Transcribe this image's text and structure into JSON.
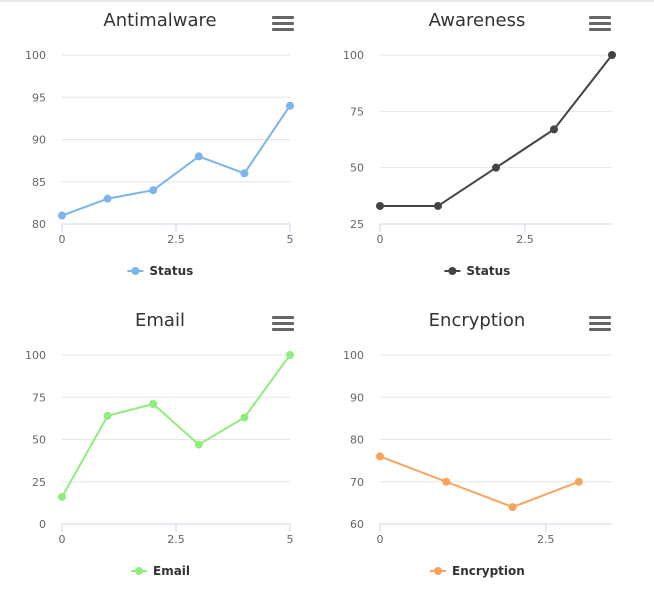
{
  "charts": [
    {
      "type": "line",
      "title": "Antimalware",
      "menu_icon": "hamburger-menu-icon",
      "color": "#7cb5ec",
      "x": [
        0,
        1,
        2,
        3,
        4,
        5
      ],
      "series": [
        {
          "name": "Status",
          "values": [
            81,
            83,
            84,
            88,
            86,
            94
          ]
        }
      ],
      "xlim": [
        0,
        5
      ],
      "xticks": [
        "0",
        "2.5",
        "5"
      ],
      "ylim": [
        80,
        100
      ],
      "yticks": [
        "80",
        "85",
        "90",
        "95",
        "100"
      ],
      "legend": "Status"
    },
    {
      "type": "line",
      "title": "Awareness",
      "menu_icon": "hamburger-menu-icon",
      "color": "#434348",
      "x": [
        0,
        1,
        2,
        3,
        4
      ],
      "series": [
        {
          "name": "Status",
          "values": [
            33,
            33,
            50,
            67,
            100
          ]
        }
      ],
      "xlim": [
        0,
        4
      ],
      "xticks": [
        "0",
        "2.5"
      ],
      "ylim": [
        25,
        100
      ],
      "yticks": [
        "25",
        "50",
        "75",
        "100"
      ],
      "legend": "Status"
    },
    {
      "type": "line",
      "title": "Email",
      "menu_icon": "hamburger-menu-icon",
      "color": "#90ed7d",
      "x": [
        0,
        1,
        2,
        3,
        4,
        5
      ],
      "series": [
        {
          "name": "Email",
          "values": [
            16,
            64,
            71,
            47,
            63,
            100
          ]
        }
      ],
      "xlim": [
        0,
        5
      ],
      "xticks": [
        "0",
        "2.5",
        "5"
      ],
      "ylim": [
        0,
        100
      ],
      "yticks": [
        "0",
        "25",
        "50",
        "75",
        "100"
      ],
      "legend": "Email"
    },
    {
      "type": "line",
      "title": "Encryption",
      "menu_icon": "hamburger-menu-icon",
      "color": "#f7a35c",
      "x": [
        0,
        1,
        2,
        3
      ],
      "series": [
        {
          "name": "Encryption",
          "values": [
            76,
            70,
            64,
            70
          ]
        }
      ],
      "xlim": [
        0,
        3
      ],
      "xticks": [
        "0",
        "2.5"
      ],
      "ylim": [
        60,
        100
      ],
      "yticks": [
        "60",
        "70",
        "80",
        "90",
        "100"
      ],
      "legend": "Encryption"
    }
  ],
  "chart_data": [
    {
      "type": "line",
      "title": "Antimalware",
      "categories": [
        0,
        1,
        2,
        3,
        4,
        5
      ],
      "series": [
        {
          "name": "Status",
          "values": [
            81,
            83,
            84,
            88,
            86,
            94
          ]
        }
      ],
      "xlabel": "",
      "ylabel": "",
      "xlim": [
        0,
        5
      ],
      "ylim": [
        80,
        100
      ],
      "legend": "bottom-center"
    },
    {
      "type": "line",
      "title": "Awareness",
      "categories": [
        0,
        1,
        2,
        3,
        4
      ],
      "series": [
        {
          "name": "Status",
          "values": [
            33,
            33,
            50,
            67,
            100
          ]
        }
      ],
      "xlabel": "",
      "ylabel": "",
      "xlim": [
        0,
        4
      ],
      "ylim": [
        25,
        100
      ],
      "legend": "bottom-center"
    },
    {
      "type": "line",
      "title": "Email",
      "categories": [
        0,
        1,
        2,
        3,
        4,
        5
      ],
      "series": [
        {
          "name": "Email",
          "values": [
            16,
            64,
            71,
            47,
            63,
            100
          ]
        }
      ],
      "xlabel": "",
      "ylabel": "",
      "xlim": [
        0,
        5
      ],
      "ylim": [
        0,
        100
      ],
      "legend": "bottom-center"
    },
    {
      "type": "line",
      "title": "Encryption",
      "categories": [
        0,
        1,
        2,
        3
      ],
      "series": [
        {
          "name": "Encryption",
          "values": [
            76,
            70,
            64,
            70
          ]
        }
      ],
      "xlabel": "",
      "ylabel": "",
      "xlim": [
        0,
        3
      ],
      "ylim": [
        60,
        100
      ],
      "legend": "bottom-center"
    }
  ]
}
